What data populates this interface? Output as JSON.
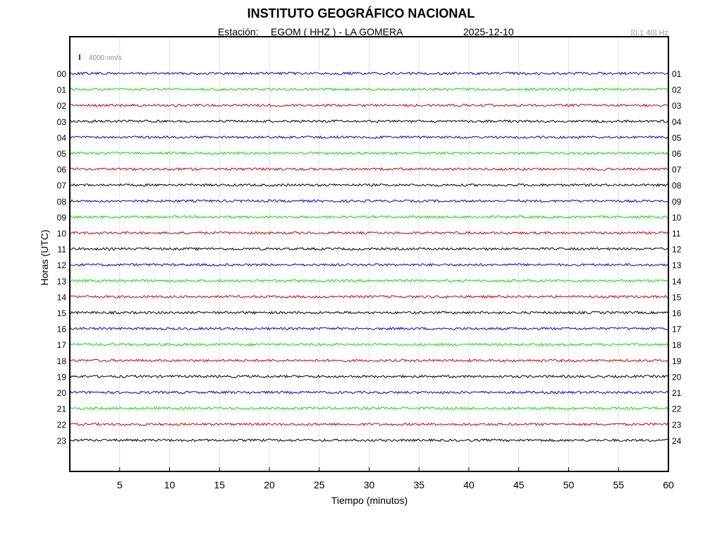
{
  "header": {
    "title": "INSTITUTO GEOGRÁFICO NACIONAL",
    "station_label": "Estación:",
    "station": "EGOM ( HHZ ) - LA GOMERA",
    "date": "2025-12-10",
    "filter": "[0.1 40] Hz"
  },
  "chart_data": {
    "type": "line",
    "xlabel": "Tiempo (minutos)",
    "ylabel": "Horas (UTC)",
    "xlim": [
      0,
      60
    ],
    "x_ticks": [
      5,
      10,
      15,
      20,
      25,
      30,
      35,
      40,
      45,
      50,
      55,
      60
    ],
    "grid": "vertical",
    "scale_label": "4000 nm/s",
    "scale_color": "#cc0000",
    "left_labels": [
      "00",
      "01",
      "02",
      "03",
      "04",
      "05",
      "06",
      "07",
      "08",
      "09",
      "10",
      "11",
      "12",
      "13",
      "14",
      "15",
      "16",
      "17",
      "18",
      "19",
      "20",
      "21",
      "22",
      "23"
    ],
    "right_labels": [
      "01",
      "02",
      "03",
      "04",
      "05",
      "06",
      "07",
      "08",
      "09",
      "10",
      "11",
      "12",
      "13",
      "14",
      "15",
      "16",
      "17",
      "18",
      "19",
      "20",
      "21",
      "22",
      "23",
      "24"
    ],
    "trace_colors": [
      "#0000cc",
      "#00dd00",
      "#cc0000",
      "#000000"
    ]
  }
}
